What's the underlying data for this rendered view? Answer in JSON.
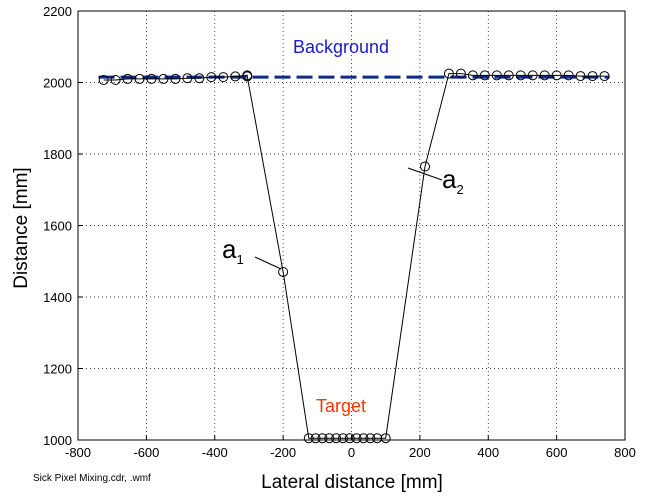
{
  "chart_data": {
    "type": "scatter",
    "xlabel": "Lateral distance [mm]",
    "ylabel": "Distance [mm]",
    "xlim": [
      -800,
      800
    ],
    "ylim": [
      1000,
      2200
    ],
    "xticks": [
      -800,
      -600,
      -400,
      -200,
      0,
      200,
      400,
      600,
      800
    ],
    "yticks": [
      1000,
      1200,
      1400,
      1600,
      1800,
      2000,
      2200
    ],
    "grid": true,
    "background_line": {
      "name": "Background",
      "y": 2015,
      "color": "#0a2a8c"
    },
    "series": [
      {
        "points": [
          [
            -725,
            2007
          ],
          [
            -690,
            2007
          ],
          [
            -655,
            2010
          ],
          [
            -620,
            2010
          ],
          [
            -585,
            2010
          ],
          [
            -550,
            2010
          ],
          [
            -515,
            2010
          ],
          [
            -480,
            2012
          ],
          [
            -445,
            2012
          ],
          [
            -410,
            2015
          ],
          [
            -375,
            2015
          ],
          [
            -340,
            2017
          ],
          [
            -305,
            2020
          ],
          [
            -305,
            2017
          ],
          [
            -200,
            1470
          ],
          [
            -125,
            1005
          ],
          [
            -105,
            1005
          ],
          [
            -85,
            1005
          ],
          [
            -65,
            1005
          ],
          [
            -45,
            1005
          ],
          [
            -25,
            1005
          ],
          [
            -5,
            1005
          ],
          [
            15,
            1005
          ],
          [
            35,
            1005
          ],
          [
            55,
            1005
          ],
          [
            75,
            1005
          ],
          [
            100,
            1005
          ],
          [
            215,
            1765
          ],
          [
            285,
            2025
          ],
          [
            320,
            2025
          ],
          [
            355,
            2020
          ],
          [
            390,
            2020
          ],
          [
            425,
            2020
          ],
          [
            460,
            2020
          ],
          [
            495,
            2020
          ],
          [
            530,
            2020
          ],
          [
            565,
            2020
          ],
          [
            600,
            2020
          ],
          [
            635,
            2020
          ],
          [
            670,
            2018
          ],
          [
            705,
            2018
          ],
          [
            740,
            2018
          ]
        ]
      }
    ],
    "annotations": [
      {
        "text": "Background",
        "color": "#1a1acc"
      },
      {
        "text": "Target",
        "color": "#ff3300"
      },
      {
        "text": "a",
        "sub": "1",
        "color": "#000000"
      },
      {
        "text": "a",
        "sub": "2",
        "color": "#000000"
      }
    ]
  },
  "footer": "Sick Pixel Mixing.cdr, .wmf"
}
